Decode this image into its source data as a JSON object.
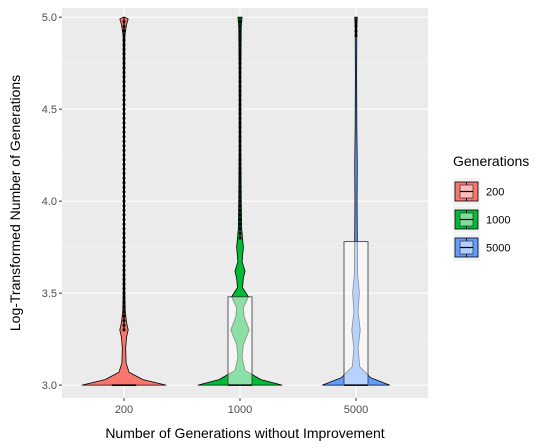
{
  "chart_data": {
    "type": "violin",
    "xlabel": "Number of Generations without Improvement",
    "ylabel": "Log-Transformed Number of Generations",
    "categories": [
      "200",
      "1000",
      "5000"
    ],
    "ylim": [
      2.93,
      5.05
    ],
    "yticks": [
      3.0,
      3.5,
      4.0,
      4.5,
      5.0
    ],
    "ytick_labels": [
      "3.0",
      "3.5",
      "4.0",
      "4.5",
      "5.0"
    ],
    "grid": true,
    "legend": {
      "title": "Generations",
      "placement": "right",
      "entries": [
        {
          "label": "200",
          "color": "#F8766D"
        },
        {
          "label": "1000",
          "color": "#00BA38"
        },
        {
          "label": "5000",
          "color": "#619CFF"
        }
      ]
    },
    "series": [
      {
        "category": "200",
        "color": "#F8766D",
        "box": {
          "q1": 3.0,
          "median": 3.0,
          "q3": 3.0
        },
        "density": [
          [
            3.0,
            1.0
          ],
          [
            3.03,
            0.45
          ],
          [
            3.07,
            0.12
          ],
          [
            3.12,
            0.05
          ],
          [
            3.2,
            0.04
          ],
          [
            3.26,
            0.06
          ],
          [
            3.3,
            0.1
          ],
          [
            3.34,
            0.06
          ],
          [
            3.4,
            0.03
          ],
          [
            3.5,
            0.02
          ],
          [
            3.7,
            0.015
          ],
          [
            4.0,
            0.012
          ],
          [
            4.5,
            0.01
          ],
          [
            4.9,
            0.02
          ],
          [
            4.96,
            0.06
          ],
          [
            4.99,
            0.1
          ],
          [
            5.0,
            0.02
          ]
        ],
        "outliers_from": 3.3,
        "outliers_to": 5.0
      },
      {
        "category": "1000",
        "color": "#00BA38",
        "box": {
          "q1": 3.0,
          "median": 3.0,
          "q3": 3.48
        },
        "density": [
          [
            3.0,
            1.0
          ],
          [
            3.03,
            0.5
          ],
          [
            3.08,
            0.12
          ],
          [
            3.15,
            0.05
          ],
          [
            3.22,
            0.08
          ],
          [
            3.3,
            0.22
          ],
          [
            3.37,
            0.1
          ],
          [
            3.42,
            0.08
          ],
          [
            3.48,
            0.2
          ],
          [
            3.53,
            0.06
          ],
          [
            3.58,
            0.08
          ],
          [
            3.62,
            0.12
          ],
          [
            3.67,
            0.05
          ],
          [
            3.75,
            0.08
          ],
          [
            3.85,
            0.04
          ],
          [
            4.0,
            0.03
          ],
          [
            4.3,
            0.02
          ],
          [
            4.7,
            0.02
          ],
          [
            4.95,
            0.03
          ],
          [
            5.0,
            0.05
          ]
        ],
        "outliers_from": 3.8,
        "outliers_to": 5.0
      },
      {
        "category": "5000",
        "color": "#619CFF",
        "box": {
          "q1": 3.0,
          "median": 3.0,
          "q3": 3.78
        },
        "density": [
          [
            3.0,
            0.8
          ],
          [
            3.04,
            0.35
          ],
          [
            3.1,
            0.09
          ],
          [
            3.2,
            0.05
          ],
          [
            3.3,
            0.1
          ],
          [
            3.4,
            0.05
          ],
          [
            3.5,
            0.08
          ],
          [
            3.6,
            0.04
          ],
          [
            3.8,
            0.03
          ],
          [
            4.0,
            0.025
          ],
          [
            4.2,
            0.03
          ],
          [
            4.4,
            0.02
          ],
          [
            4.7,
            0.015
          ],
          [
            4.95,
            0.02
          ],
          [
            5.0,
            0.03
          ]
        ],
        "outliers_from": 4.9,
        "outliers_to": 5.0
      }
    ]
  }
}
